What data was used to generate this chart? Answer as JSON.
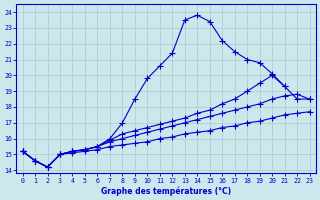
{
  "xlabel": "Graphe des températures (°C)",
  "background_color": "#cce8ec",
  "grid_color": "#aac8cc",
  "line_color": "#0000cc",
  "ylim": [
    13.8,
    24.5
  ],
  "xlim": [
    -0.5,
    23.5
  ],
  "yticks": [
    14,
    15,
    16,
    17,
    18,
    19,
    20,
    21,
    22,
    23,
    24
  ],
  "xticks": [
    0,
    1,
    2,
    3,
    4,
    5,
    6,
    7,
    8,
    9,
    10,
    11,
    12,
    13,
    14,
    15,
    16,
    17,
    18,
    19,
    20,
    21,
    22,
    23
  ],
  "line1_x": [
    0,
    1,
    2,
    3,
    4,
    5,
    6,
    7,
    8,
    9,
    10,
    11,
    12,
    13,
    14,
    15,
    16,
    17,
    18,
    19,
    20,
    21
  ],
  "line1_y": [
    15.2,
    14.6,
    14.2,
    15.0,
    15.2,
    15.3,
    15.5,
    16.0,
    17.0,
    18.5,
    19.8,
    20.6,
    21.4,
    23.5,
    23.8,
    23.4,
    22.2,
    21.5,
    21.0,
    20.8,
    20.1,
    19.3
  ],
  "line2_x": [
    0,
    1,
    2,
    3,
    4,
    5,
    6,
    7,
    8,
    9,
    10,
    11,
    12,
    13,
    14,
    15,
    16,
    17,
    18,
    19,
    20,
    21,
    22,
    23
  ],
  "line2_y": [
    15.2,
    14.6,
    14.2,
    15.0,
    15.2,
    15.3,
    15.5,
    15.9,
    16.3,
    16.5,
    16.7,
    16.9,
    17.1,
    17.3,
    17.6,
    17.8,
    18.2,
    18.5,
    19.0,
    19.5,
    20.0,
    19.3,
    18.5,
    18.5
  ],
  "line3_x": [
    0,
    1,
    2,
    3,
    4,
    5,
    6,
    7,
    8,
    9,
    10,
    11,
    12,
    13,
    14,
    15,
    16,
    17,
    18,
    19,
    20,
    21,
    22,
    23
  ],
  "line3_y": [
    15.2,
    14.6,
    14.2,
    15.0,
    15.2,
    15.3,
    15.5,
    15.8,
    16.0,
    16.2,
    16.4,
    16.6,
    16.8,
    17.0,
    17.2,
    17.4,
    17.6,
    17.8,
    18.0,
    18.2,
    18.5,
    18.7,
    18.8,
    18.5
  ],
  "line4_x": [
    0,
    1,
    2,
    3,
    4,
    5,
    6,
    7,
    8,
    9,
    10,
    11,
    12,
    13,
    14,
    15,
    16,
    17,
    18,
    19,
    20,
    21,
    22,
    23
  ],
  "line4_y": [
    15.2,
    14.6,
    14.2,
    15.0,
    15.1,
    15.2,
    15.3,
    15.5,
    15.6,
    15.7,
    15.8,
    16.0,
    16.1,
    16.3,
    16.4,
    16.5,
    16.7,
    16.8,
    17.0,
    17.1,
    17.3,
    17.5,
    17.6,
    17.7
  ]
}
